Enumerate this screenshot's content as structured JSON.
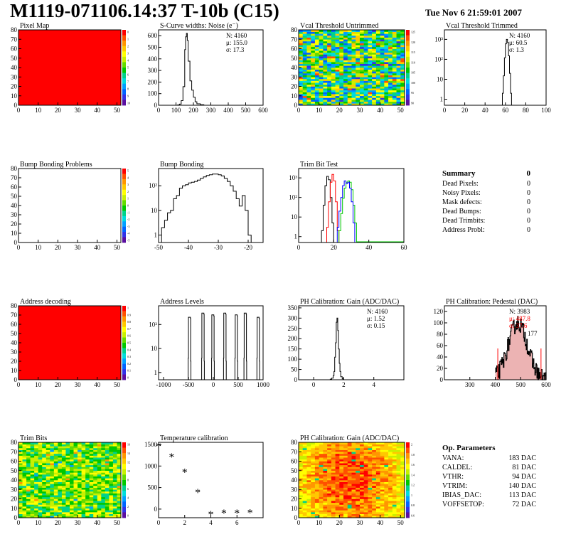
{
  "header": {
    "title": "M1119-071106.14:37 T-10b (C15)",
    "timestamp": "Tue Nov  6 21:59:01 2007"
  },
  "summary": {
    "title": "Summary",
    "value": "0",
    "rows": [
      {
        "label": "Dead Pixels:",
        "value": "0"
      },
      {
        "label": "Noisy Pixels:",
        "value": "0"
      },
      {
        "label": "Mask defects:",
        "value": "0"
      },
      {
        "label": "Dead Bumps:",
        "value": "0"
      },
      {
        "label": "Dead Trimbits:",
        "value": "0"
      },
      {
        "label": "Address Probl:",
        "value": "0"
      }
    ]
  },
  "op_parameters": {
    "title": "Op. Parameters",
    "rows": [
      {
        "label": "VANA:",
        "value": "183 DAC"
      },
      {
        "label": "CALDEL:",
        "value": "81 DAC"
      },
      {
        "label": "VTHR:",
        "value": "94 DAC"
      },
      {
        "label": "VTRIM:",
        "value": "140 DAC"
      },
      {
        "label": "IBIAS_DAC:",
        "value": "113 DAC"
      },
      {
        "label": "VOFFSETOP:",
        "value": "72 DAC"
      }
    ]
  },
  "colors": {
    "red": "#ff0000",
    "green": "#00c800",
    "blue": "#0000ff",
    "pedestal_fill": "#e08080"
  },
  "chart_data": [
    {
      "id": "pixel-map",
      "type": "heatmap",
      "title": "Pixel Map",
      "fill": "uniform-red",
      "xlim": [
        0,
        52
      ],
      "ylim": [
        0,
        80
      ],
      "xticks": [
        0,
        10,
        20,
        30,
        40,
        50
      ],
      "yticks": [
        0,
        10,
        20,
        30,
        40,
        50,
        60,
        70,
        80
      ],
      "zticks": [
        "0",
        "1",
        "2",
        "3",
        "4",
        "5",
        "6",
        "7",
        "8",
        "9",
        "10"
      ]
    },
    {
      "id": "noise",
      "type": "histogram",
      "title": "S-Curve widths: Noise (e⁻)",
      "xlim": [
        0,
        600
      ],
      "ylim": [
        0,
        650
      ],
      "xticks": [
        0,
        100,
        200,
        300,
        400,
        500,
        600
      ],
      "yticks": [
        0,
        100,
        200,
        300,
        400,
        500,
        600
      ],
      "bins": [
        [
          100,
          0
        ],
        [
          110,
          3
        ],
        [
          120,
          10
        ],
        [
          130,
          40
        ],
        [
          140,
          160
        ],
        [
          150,
          480
        ],
        [
          155,
          590
        ],
        [
          160,
          620
        ],
        [
          165,
          560
        ],
        [
          170,
          380
        ],
        [
          180,
          210
        ],
        [
          190,
          130
        ],
        [
          200,
          70
        ],
        [
          210,
          30
        ],
        [
          220,
          12
        ],
        [
          240,
          4
        ],
        [
          260,
          0
        ]
      ],
      "stats": [
        "N: 4160",
        "μ: 155.0",
        "σ: 17.3"
      ]
    },
    {
      "id": "vcal-untrimmed",
      "type": "heatmap",
      "title": "Vcal Threshold Untrimmed",
      "fill": "noise-mixed",
      "xlim": [
        0,
        52
      ],
      "ylim": [
        0,
        80
      ],
      "xticks": [
        0,
        10,
        20,
        30,
        40,
        50
      ],
      "yticks": [
        0,
        10,
        20,
        30,
        40,
        50,
        60,
        70,
        80
      ],
      "zticks": [
        "125",
        "120",
        "115",
        "110",
        "105",
        "100",
        "95",
        "90"
      ]
    },
    {
      "id": "vcal-trimmed",
      "type": "histogram",
      "title": "Vcal Threshold Trimmed",
      "log": true,
      "xlim": [
        0,
        100
      ],
      "ylim": [
        0.5,
        3000
      ],
      "xticks": [
        0,
        20,
        40,
        60,
        80,
        100
      ],
      "yticks": [
        1,
        10,
        100,
        1000
      ],
      "ytick_labels": [
        "1",
        "10",
        "10²",
        "10³"
      ],
      "bins": [
        [
          56,
          0
        ],
        [
          57,
          2
        ],
        [
          58,
          15
        ],
        [
          59,
          120
        ],
        [
          60,
          600
        ],
        [
          61,
          1000
        ],
        [
          62,
          700
        ],
        [
          63,
          150
        ],
        [
          64,
          20
        ],
        [
          65,
          2
        ],
        [
          66,
          0
        ]
      ],
      "stats": [
        "N: 4160",
        "μ: 60.5",
        "σ:  1.3"
      ]
    },
    {
      "id": "bump-problems",
      "type": "heatmap",
      "title": "Bump Bonding Problems",
      "fill": "empty",
      "xlim": [
        0,
        52
      ],
      "ylim": [
        0,
        80
      ],
      "xticks": [
        0,
        10,
        20,
        30,
        40,
        50
      ],
      "yticks": [
        0,
        10,
        20,
        30,
        40,
        50,
        60,
        70,
        80
      ],
      "zticks": [
        "5",
        "4",
        "3",
        "2",
        "1",
        "0",
        "-1",
        "-2",
        "-3",
        "-4",
        "-5"
      ]
    },
    {
      "id": "bump-bonding",
      "type": "histogram",
      "title": "Bump Bonding",
      "log": true,
      "xlim": [
        -50,
        -15
      ],
      "ylim": [
        0.5,
        500
      ],
      "xticks": [
        -50,
        -40,
        -30,
        -20
      ],
      "yticks": [
        1,
        10,
        100
      ],
      "ytick_labels": [
        "1",
        "10",
        "10²"
      ],
      "bins": [
        [
          -50,
          0
        ],
        [
          -49,
          2
        ],
        [
          -48,
          4
        ],
        [
          -47,
          8
        ],
        [
          -46,
          10
        ],
        [
          -45,
          30
        ],
        [
          -44,
          40
        ],
        [
          -43,
          80
        ],
        [
          -42,
          100
        ],
        [
          -41,
          110
        ],
        [
          -40,
          130
        ],
        [
          -39,
          140
        ],
        [
          -38,
          150
        ],
        [
          -37,
          170
        ],
        [
          -36,
          200
        ],
        [
          -35,
          230
        ],
        [
          -34,
          260
        ],
        [
          -33,
          280
        ],
        [
          -32,
          300
        ],
        [
          -31,
          300
        ],
        [
          -30,
          280
        ],
        [
          -29,
          250
        ],
        [
          -28,
          200
        ],
        [
          -27,
          150
        ],
        [
          -26,
          100
        ],
        [
          -25,
          60
        ],
        [
          -24,
          30
        ],
        [
          -23,
          15
        ],
        [
          -22,
          40
        ],
        [
          -21,
          10
        ],
        [
          -20,
          1
        ],
        [
          -19,
          0
        ]
      ]
    },
    {
      "id": "trim-bit-test",
      "type": "histogram",
      "title": "Trim Bit Test",
      "log": true,
      "xlim": [
        0,
        60
      ],
      "ylim": [
        0.5,
        3000
      ],
      "xticks": [
        0,
        20,
        40,
        60
      ],
      "yticks": [
        1,
        10,
        100,
        1000
      ],
      "ytick_labels": [
        "1",
        "10",
        "10²",
        "10³"
      ],
      "series": [
        {
          "color": "black",
          "bins": [
            [
              12,
              0
            ],
            [
              13,
              2
            ],
            [
              14,
              40
            ],
            [
              15,
              400
            ],
            [
              16,
              1200
            ],
            [
              17,
              800
            ],
            [
              18,
              100
            ],
            [
              19,
              5
            ],
            [
              20,
              0
            ]
          ]
        },
        {
          "color": "red",
          "bins": [
            [
              15,
              0
            ],
            [
              16,
              3
            ],
            [
              17,
              60
            ],
            [
              18,
              600
            ],
            [
              19,
              1500
            ],
            [
              20,
              700
            ],
            [
              21,
              60
            ],
            [
              22,
              2
            ],
            [
              23,
              0
            ]
          ]
        },
        {
          "color": "green",
          "bins": [
            [
              22,
              0
            ],
            [
              23,
              2
            ],
            [
              24,
              15
            ],
            [
              25,
              90
            ],
            [
              26,
              300
            ],
            [
              27,
              600
            ],
            [
              28,
              700
            ],
            [
              29,
              600
            ],
            [
              30,
              250
            ],
            [
              31,
              40
            ],
            [
              32,
              5
            ],
            [
              33,
              0
            ],
            [
              60,
              0
            ]
          ]
        },
        {
          "color": "blue",
          "bins": [
            [
              21,
              0
            ],
            [
              22,
              3
            ],
            [
              23,
              20
            ],
            [
              24,
              100
            ],
            [
              25,
              400
            ],
            [
              26,
              700
            ],
            [
              27,
              500
            ],
            [
              28,
              600
            ],
            [
              29,
              300
            ],
            [
              30,
              60
            ],
            [
              31,
              5
            ],
            [
              32,
              0
            ]
          ]
        }
      ]
    },
    {
      "id": "address-decoding",
      "type": "heatmap",
      "title": "Address decoding",
      "fill": "uniform-red",
      "xlim": [
        0,
        52
      ],
      "ylim": [
        0,
        80
      ],
      "xticks": [
        0,
        10,
        20,
        30,
        40,
        50
      ],
      "yticks": [
        0,
        10,
        20,
        30,
        40,
        50,
        60,
        70,
        80
      ],
      "zticks": [
        "1",
        "0.9",
        "0.8",
        "0.7",
        "0.6",
        "0.5",
        "0.4",
        "0.3",
        "0.2",
        "0.1",
        "0"
      ]
    },
    {
      "id": "address-levels",
      "type": "histogram",
      "title": "Address Levels",
      "log": true,
      "xlim": [
        -1100,
        1000
      ],
      "ylim": [
        0.5,
        600
      ],
      "xticks": [
        -1000,
        -500,
        0,
        500,
        1000
      ],
      "yticks": [
        1,
        10,
        100
      ],
      "ytick_labels": [
        "1",
        "10",
        "10²"
      ],
      "peaks": [
        -480,
        -210,
        -10,
        230,
        460,
        640,
        900
      ],
      "peak_heights": [
        200,
        300,
        250,
        300,
        250,
        300,
        200
      ]
    },
    {
      "id": "ph-gain",
      "type": "histogram",
      "title": "PH Calibration: Gain (ADC/DAC)",
      "xlim": [
        -1,
        6
      ],
      "ylim": [
        0,
        360
      ],
      "xticks": [
        0,
        2,
        4
      ],
      "yticks": [
        0,
        50,
        100,
        150,
        200,
        250,
        300,
        350
      ],
      "bins": [
        [
          1.0,
          0
        ],
        [
          1.1,
          3
        ],
        [
          1.2,
          8
        ],
        [
          1.3,
          20
        ],
        [
          1.35,
          40
        ],
        [
          1.4,
          110
        ],
        [
          1.45,
          180
        ],
        [
          1.5,
          280
        ],
        [
          1.55,
          300
        ],
        [
          1.6,
          240
        ],
        [
          1.65,
          150
        ],
        [
          1.7,
          80
        ],
        [
          1.75,
          40
        ],
        [
          1.8,
          15
        ],
        [
          1.9,
          4
        ],
        [
          2.0,
          0
        ]
      ],
      "stats": [
        "N: 4160",
        "μ: 1.52",
        "σ: 0.15"
      ]
    },
    {
      "id": "ph-pedestal",
      "type": "histogram",
      "title": "PH Calibration: Pedestal (DAC)",
      "xlim": [
        200,
        600
      ],
      "ylim": [
        0,
        130
      ],
      "xticks": [
        300,
        400,
        500,
        600
      ],
      "yticks": [
        0,
        20,
        40,
        60,
        80,
        100,
        120
      ],
      "stats": [
        "N: 3983",
        "μ: 487.8",
        "σ: 37.6"
      ],
      "annotation": "177"
    },
    {
      "id": "trim-bits",
      "type": "heatmap",
      "title": "Trim Bits",
      "fill": "noise-green",
      "xlim": [
        0,
        52
      ],
      "ylim": [
        0,
        80
      ],
      "xticks": [
        0,
        10,
        20,
        30,
        40,
        50
      ],
      "yticks": [
        0,
        10,
        20,
        30,
        40,
        50,
        60,
        70,
        80
      ],
      "zticks": [
        "16",
        "14",
        "12",
        "10",
        "8",
        "6",
        "4",
        "2",
        "0"
      ]
    },
    {
      "id": "temperature",
      "type": "scatter",
      "title": "Temperature calibration",
      "xlim": [
        0,
        8
      ],
      "ylim": [
        -200,
        1550
      ],
      "xticks": [
        0,
        2,
        4,
        6
      ],
      "yticks": [
        0,
        500,
        1000,
        1500
      ],
      "points": [
        [
          0,
          1450
        ],
        [
          1,
          1200
        ],
        [
          2,
          850
        ],
        [
          3,
          380
        ],
        [
          4,
          -130
        ],
        [
          5,
          -100
        ],
        [
          6,
          -100
        ],
        [
          7,
          -90
        ]
      ]
    },
    {
      "id": "ph-gain-map",
      "type": "heatmap",
      "title": "PH Calibration: Gain (ADC/DAC)",
      "fill": "noise-warm",
      "xlim": [
        0,
        52
      ],
      "ylim": [
        0,
        80
      ],
      "xticks": [
        0,
        10,
        20,
        30,
        40,
        50
      ],
      "yticks": [
        0,
        10,
        20,
        30,
        40,
        50,
        60,
        70,
        80
      ],
      "zticks": [
        "2",
        "1.8",
        "1.6",
        "1.4",
        "1.2",
        "1",
        "0.8",
        "0.6"
      ]
    }
  ]
}
